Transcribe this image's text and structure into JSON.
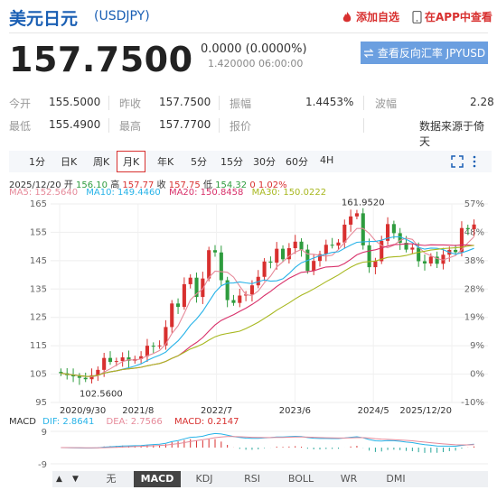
{
  "header": {
    "title": "美元日元",
    "code": "(USDJPY)",
    "add_favorite": "添加自选",
    "view_in_app": "在APP中查看"
  },
  "quote": {
    "price": "157.7500",
    "change": "0.0000 (0.0000%)",
    "time": "1.420000 06:00:00",
    "reverse_button": "查看反向汇率 JPYUSD"
  },
  "stats": {
    "open_label": "今开",
    "open": "155.5000",
    "prev_label": "昨收",
    "prev": "157.7500",
    "amp_label": "振幅",
    "amp": "1.4453%",
    "wave_label": "波幅",
    "wave": "2.28",
    "low_label": "最低",
    "low": "155.4900",
    "high_label": "最高",
    "high": "157.7700",
    "quote_label": "报价",
    "source": "数据来源于倚天"
  },
  "tabs": [
    "1分",
    "日K",
    "周K",
    "月K",
    "年K",
    "5分",
    "15分",
    "30分",
    "60分",
    "4H"
  ],
  "active_tab": "月K",
  "bar_info": {
    "date": "2025/12/20",
    "open_label": "开",
    "open": "156.10",
    "high_label": "高",
    "high": "157.77",
    "close_label": "收",
    "close": "157.75",
    "low_label": "低",
    "low": "154.32",
    "change": "0 1.02%"
  },
  "ma": {
    "ma5": "MA5: 152.5640",
    "ma10": "MA10: 149.4460",
    "ma20": "MA20: 150.8458",
    "ma30": "MA30: 150.0222"
  },
  "macd": {
    "label": "MACD",
    "dif": "DIF: 2.8641",
    "dea": "DEA: 2.7566",
    "macd": "MACD: 0.2147",
    "axis_top": "9",
    "axis_bottom": "-9"
  },
  "indicator_tabs": [
    "无",
    "MACD",
    "KDJ",
    "RSI",
    "BOLL",
    "WR",
    "DMI"
  ],
  "active_indicator": "MACD",
  "colors": {
    "up": "#d8302f",
    "down": "#2e9c3e",
    "ma5": "#e68a9a",
    "ma10": "#27b3e8",
    "ma20": "#d8306a",
    "ma30": "#a8b820"
  },
  "chart_data": {
    "type": "candlestick",
    "y_ticks": [
      165,
      155,
      145,
      135,
      125,
      115,
      105,
      95
    ],
    "y_range": [
      95,
      165
    ],
    "pct_ticks": [
      "57%",
      "48%",
      "38%",
      "28%",
      "19%",
      "9%",
      "0%",
      "-10%"
    ],
    "x_ticks": [
      "2020/9/30",
      "2021/8",
      "2022/7",
      "2023/6",
      "2024/5",
      "2025/12/20"
    ],
    "annotations": {
      "max": "161.9520",
      "min": "102.5600"
    },
    "closes": [
      105.3,
      104.6,
      104.2,
      103.7,
      103.2,
      104.6,
      106.5,
      110.7,
      109.3,
      109.6,
      110.9,
      109.7,
      110.3,
      111.3,
      115.0,
      114.9,
      115.1,
      121.6,
      129.9,
      128.7,
      136.7,
      139.0,
      132.2,
      138.7,
      148.7,
      147.9,
      138.1,
      131.1,
      130.1,
      132.7,
      133.1,
      136.3,
      139.3,
      144.7,
      144.3,
      149.2,
      145.5,
      149.4,
      151.7,
      148.9,
      141.4,
      144.9,
      147.3,
      150.6,
      150.3,
      151.4,
      157.7,
      160.6,
      161.7,
      150.4,
      142.7,
      144.8,
      152.0,
      157.9,
      154.7,
      151.3,
      148.9,
      149.6,
      144.8,
      144.0,
      146.4,
      143.9,
      147.1,
      148.8,
      148.0,
      156.5,
      156.1,
      157.75
    ]
  }
}
